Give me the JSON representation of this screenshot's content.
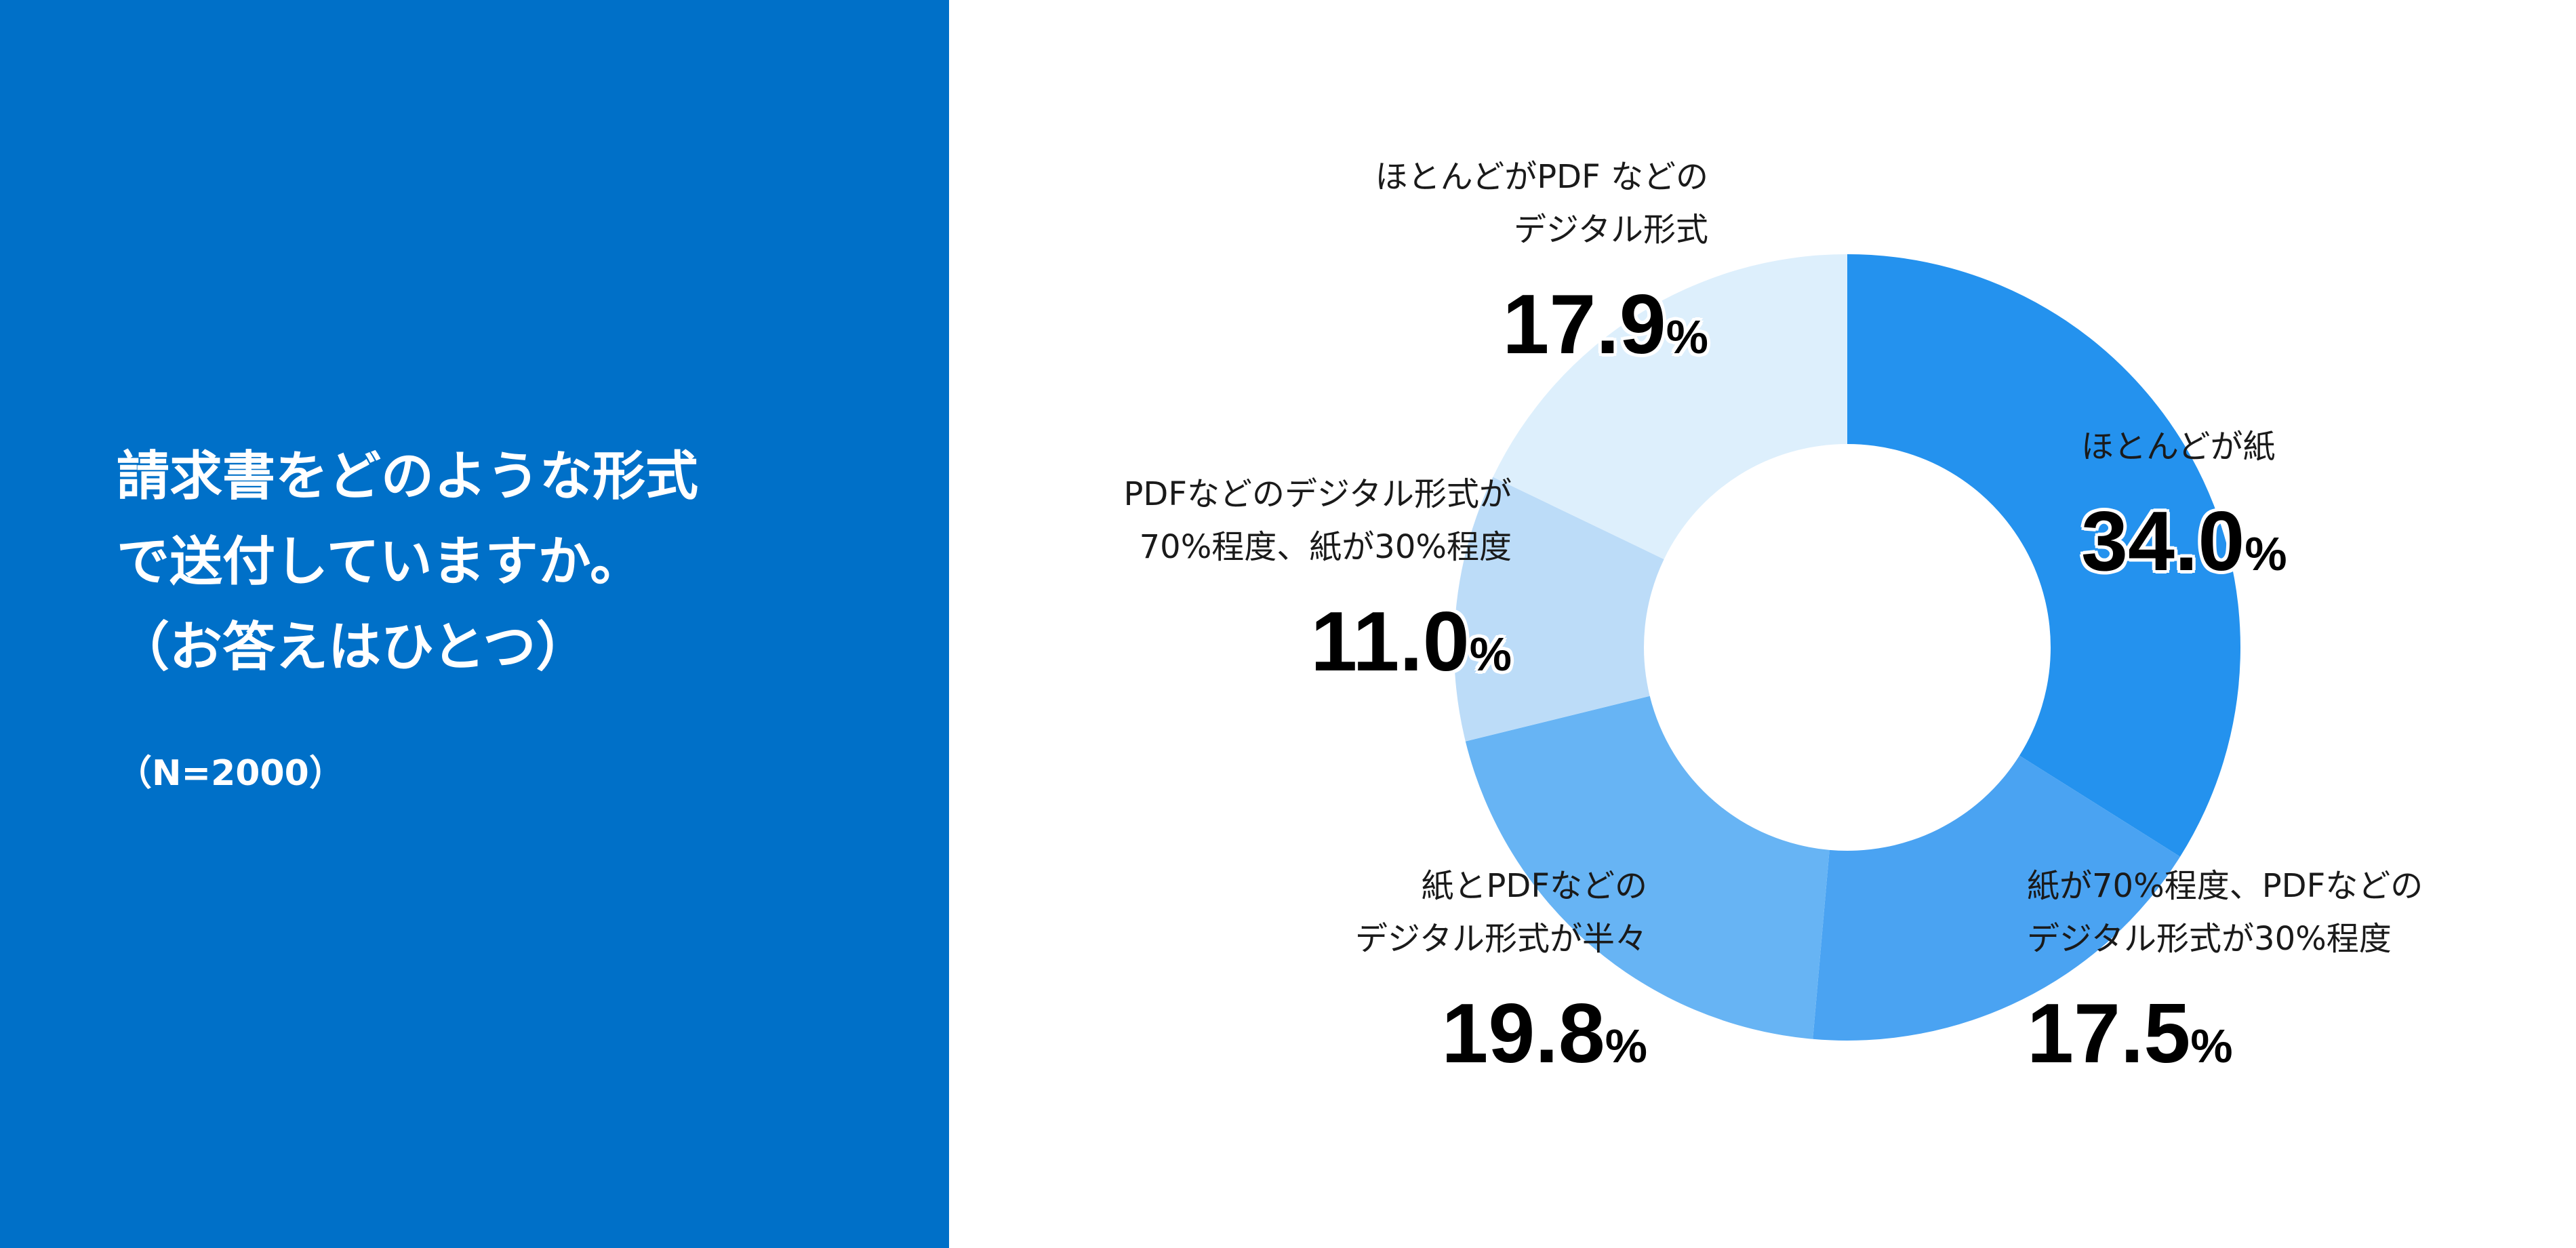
{
  "question": {
    "text": "請求書をどのような形式\nで送付していますか。\n（お答えはひとつ）",
    "sample": "（N=2000）"
  },
  "colors": {
    "panel": "#0070c8",
    "slices": [
      "#2492ee",
      "#4aa3f2",
      "#67b4f4",
      "#bcdcf8",
      "#ddeffc"
    ]
  },
  "chart_data": {
    "type": "pie",
    "variant": "donut",
    "unit": "%",
    "slices": [
      {
        "label": "ほとんどが紙",
        "value": 34.0,
        "value_text": "34.0"
      },
      {
        "label": "紙が70%程度、PDFなどの\nデジタル形式が30%程度",
        "value": 17.5,
        "value_text": "17.5"
      },
      {
        "label": "紙とPDFなどの\nデジタル形式が半々",
        "value": 19.8,
        "value_text": "19.8"
      },
      {
        "label": "PDFなどのデジタル形式が\n70%程度、紙が30%程度",
        "value": 11.0,
        "value_text": "11.0"
      },
      {
        "label": "ほとんどがPDF などの\nデジタル形式",
        "value": 17.9,
        "value_text": "17.9"
      }
    ]
  }
}
